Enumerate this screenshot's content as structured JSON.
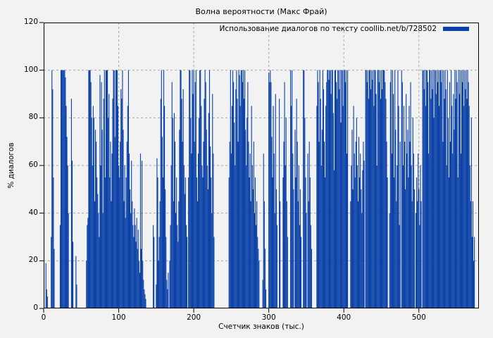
{
  "page": {
    "background": "#f2f2f2"
  },
  "chart_data": {
    "type": "bar",
    "title": "Волна вероятности (Макс Фрай)",
    "xlabel": "Счетчик знаков (тыс.)",
    "ylabel": "% диалогов",
    "series_name": "Использование диалогов по тексту coollib.net/b/728502",
    "legend_position": "top-right-inside",
    "grid": true,
    "grid_color": "#a8a8a8",
    "bar_color": "#0c42a8",
    "border_color": "#000000",
    "xlim": [
      0,
      580
    ],
    "ylim": [
      0,
      120
    ],
    "xticks": [
      0,
      100,
      200,
      300,
      400,
      500
    ],
    "yticks": [
      0,
      20,
      40,
      60,
      80,
      100,
      120
    ],
    "x_start": 0,
    "x_step": 1,
    "values": [
      0,
      0,
      0,
      19,
      8,
      5,
      0,
      0,
      0,
      0,
      30,
      100,
      92,
      55,
      25,
      0,
      0,
      0,
      0,
      0,
      0,
      0,
      35,
      100,
      100,
      100,
      100,
      100,
      100,
      97,
      85,
      72,
      60,
      40,
      0,
      0,
      0,
      88,
      62,
      28,
      0,
      0,
      0,
      22,
      10,
      0,
      0,
      0,
      0,
      0,
      0,
      0,
      0,
      0,
      0,
      0,
      0,
      20,
      35,
      38,
      100,
      100,
      100,
      95,
      80,
      60,
      85,
      80,
      45,
      75,
      70,
      55,
      48,
      40,
      30,
      98,
      60,
      95,
      75,
      40,
      88,
      100,
      55,
      100,
      100,
      100,
      80,
      90,
      55,
      70,
      45,
      65,
      88,
      100,
      100,
      72,
      100,
      100,
      100,
      85,
      60,
      55,
      70,
      92,
      88,
      100,
      75,
      45,
      60,
      38,
      55,
      70,
      85,
      100,
      65,
      50,
      40,
      62,
      45,
      35,
      30,
      42,
      35,
      28,
      38,
      25,
      33,
      20,
      15,
      65,
      25,
      62,
      20,
      12,
      8,
      6,
      4,
      0,
      0,
      0,
      0,
      0,
      0,
      0,
      0,
      0,
      35,
      30,
      0,
      0,
      10,
      63,
      55,
      20,
      30,
      45,
      88,
      100,
      72,
      55,
      100,
      85,
      50,
      30,
      12,
      8,
      15,
      0,
      20,
      35,
      60,
      95,
      80,
      45,
      82,
      70,
      40,
      55,
      35,
      28,
      45,
      75,
      100,
      100,
      88,
      70,
      92,
      60,
      48,
      55,
      35,
      30,
      0,
      55,
      100,
      100,
      80,
      65,
      100,
      90,
      100,
      70,
      95,
      100,
      55,
      45,
      65,
      80,
      100,
      100,
      85,
      60,
      55,
      70,
      88,
      100,
      95,
      75,
      60,
      50,
      82,
      100,
      68,
      55,
      40,
      90,
      65,
      30,
      0,
      0,
      0,
      0,
      0,
      0,
      0,
      0,
      0,
      0,
      0,
      0,
      0,
      0,
      0,
      0,
      0,
      0,
      0,
      55,
      70,
      100,
      65,
      85,
      100,
      95,
      78,
      60,
      92,
      100,
      88,
      70,
      100,
      98,
      85,
      100,
      100,
      95,
      100,
      88,
      100,
      75,
      60,
      80,
      95,
      70,
      55,
      65,
      45,
      85,
      60,
      50,
      70,
      40,
      55,
      35,
      45,
      30,
      25,
      20,
      0,
      0,
      0,
      0,
      12,
      65,
      45,
      25,
      8,
      0,
      0,
      0,
      99,
      95,
      100,
      95,
      72,
      55,
      85,
      65,
      40,
      90,
      50,
      35,
      0,
      0,
      88,
      45,
      0,
      0,
      0,
      55,
      70,
      95,
      60,
      80,
      45,
      30,
      0,
      0,
      0,
      100,
      85,
      100,
      65,
      50,
      0,
      75,
      55,
      88,
      70,
      45,
      60,
      35,
      50,
      30,
      0,
      0,
      100,
      100,
      80,
      55,
      40,
      0,
      65,
      45,
      70,
      55,
      35,
      25,
      0,
      0,
      0,
      0,
      0,
      0,
      85,
      100,
      95,
      70,
      100,
      88,
      60,
      75,
      100,
      92,
      70,
      55,
      85,
      95,
      100,
      100,
      96,
      100,
      100,
      90,
      100,
      100,
      82,
      58,
      100,
      100,
      95,
      88,
      100,
      100,
      92,
      100,
      78,
      100,
      100,
      85,
      100,
      100,
      95,
      100,
      65,
      100,
      0,
      0,
      0,
      45,
      60,
      75,
      50,
      85,
      65,
      55,
      70,
      80,
      60,
      45,
      72,
      55,
      65,
      50,
      40,
      58,
      70,
      62,
      0,
      100,
      100,
      95,
      100,
      88,
      100,
      100,
      92,
      100,
      96,
      100,
      85,
      100,
      100,
      90,
      60,
      100,
      100,
      95,
      100,
      88,
      100,
      92,
      100,
      100,
      100,
      95,
      88,
      70,
      55,
      0,
      0,
      40,
      95,
      100,
      65,
      100,
      90,
      55,
      100,
      75,
      45,
      60,
      100,
      85,
      35,
      70,
      0,
      100,
      95,
      60,
      85,
      70,
      50,
      90,
      65,
      75,
      55,
      85,
      70,
      95,
      60,
      45,
      80,
      65,
      50,
      0,
      40,
      55,
      45,
      65,
      50,
      35,
      60,
      45,
      0,
      100,
      100,
      92,
      100,
      85,
      100,
      100,
      95,
      65,
      100,
      100,
      88,
      100,
      92,
      100,
      80,
      100,
      100,
      90,
      100,
      95,
      100,
      85,
      100,
      100,
      95,
      100,
      70,
      100,
      88,
      100,
      92,
      60,
      100,
      80,
      55,
      95,
      70,
      100,
      85,
      65,
      90,
      75,
      100,
      88,
      100,
      95,
      55,
      100,
      90,
      100,
      65,
      100,
      95,
      100,
      85,
      100,
      92,
      100,
      88,
      100,
      95,
      85,
      60,
      45,
      80,
      30,
      45,
      20,
      30
    ]
  }
}
